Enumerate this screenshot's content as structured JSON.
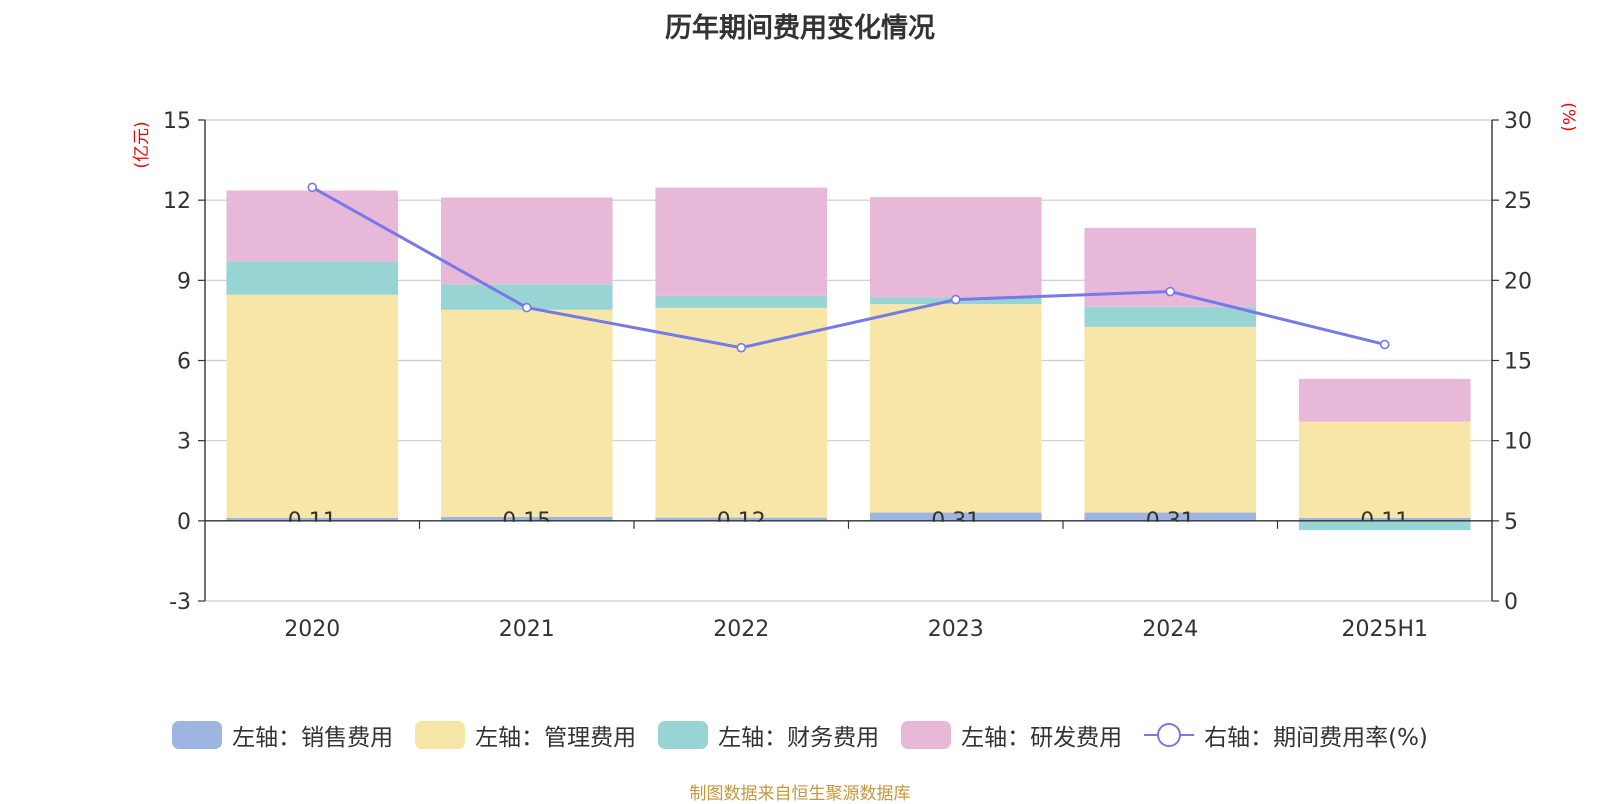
{
  "chart_data": {
    "type": "bar",
    "title": "历年期间费用变化情况",
    "categories": [
      "2020",
      "2021",
      "2022",
      "2023",
      "2024",
      "2025H1"
    ],
    "y_left": {
      "unit_label": "(亿元)",
      "min": -3,
      "max": 15,
      "ticks": [
        -3,
        0,
        3,
        6,
        9,
        12,
        15
      ]
    },
    "y_right": {
      "unit_label": "(%)",
      "min": 0,
      "max": 30,
      "ticks": [
        0,
        5,
        10,
        15,
        20,
        25,
        30
      ]
    },
    "stacked": true,
    "series": [
      {
        "name": "左轴：销售费用",
        "type": "bar",
        "axis": "left",
        "color": "#9db5e0",
        "values": [
          0.11,
          0.15,
          0.12,
          0.31,
          0.31,
          0.11
        ],
        "labels": [
          "0.11",
          "0.15",
          "0.12",
          "0.31",
          "0.31",
          "0.11"
        ]
      },
      {
        "name": "左轴：管理费用",
        "type": "bar",
        "axis": "left",
        "color": "#f7e6a8",
        "values": [
          8.35,
          7.75,
          7.85,
          7.8,
          6.95,
          3.6
        ]
      },
      {
        "name": "左轴：财务费用",
        "type": "bar",
        "axis": "left",
        "color": "#98d4d4",
        "values": [
          1.25,
          0.95,
          0.45,
          0.25,
          0.75,
          -0.35
        ]
      },
      {
        "name": "左轴：研发费用",
        "type": "bar",
        "axis": "left",
        "color": "#e8b8d8",
        "values": [
          2.65,
          3.25,
          4.05,
          3.75,
          2.95,
          1.6
        ]
      },
      {
        "name": "右轴：期间费用率(%)",
        "type": "line",
        "axis": "right",
        "color": "#7679ea",
        "values": [
          25.8,
          18.3,
          15.8,
          18.8,
          19.3,
          16.0
        ]
      }
    ],
    "grid": true,
    "legend_position": "bottom"
  },
  "source_text": "制图数据来自恒生聚源数据库"
}
